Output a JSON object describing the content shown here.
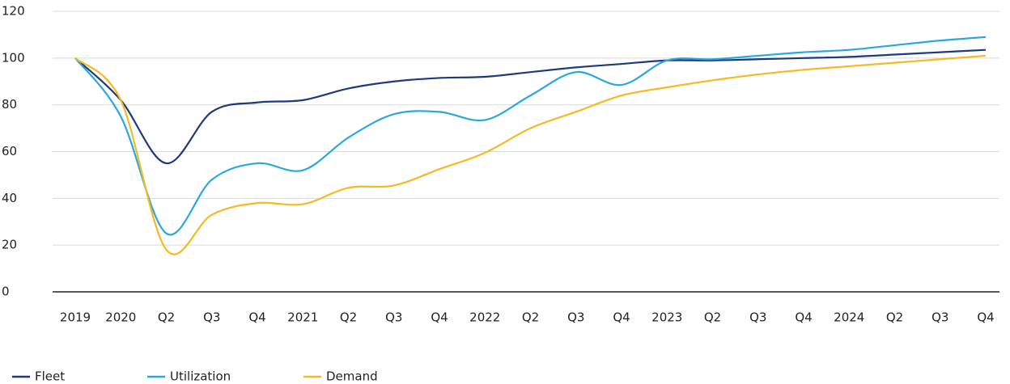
{
  "chart_data": {
    "type": "line",
    "categories": [
      "2019",
      "2020",
      "Q2",
      "Q3",
      "Q4",
      "2021",
      "Q2",
      "Q3",
      "Q4",
      "2022",
      "Q2",
      "Q3",
      "Q4",
      "2023",
      "Q2",
      "Q3",
      "Q4",
      "2024",
      "Q2",
      "Q3",
      "Q4"
    ],
    "series": [
      {
        "name": "Fleet",
        "color": "#1f3a7a",
        "values": [
          100,
          82,
          55,
          77,
          81,
          82,
          87,
          90,
          91.5,
          92,
          94,
          96,
          97.5,
          99,
          99,
          99.5,
          100,
          100.5,
          101.5,
          102.5,
          103.5
        ]
      },
      {
        "name": "Utilization",
        "color": "#29a8e0",
        "values": [
          100,
          75,
          25,
          48,
          55,
          52,
          66,
          76,
          77,
          73.5,
          84,
          94,
          88.5,
          99,
          99.5,
          101,
          102.5,
          103.5,
          105.5,
          107.5,
          109
        ]
      },
      {
        "name": "Demand",
        "color": "#f5b921",
        "values": [
          100,
          82,
          18,
          33,
          38,
          37.5,
          44.5,
          45.5,
          52.5,
          59.5,
          70,
          77,
          84,
          87.5,
          90.5,
          93,
          95,
          96.5,
          98,
          99.5,
          101
        ]
      }
    ],
    "ylim": [
      0,
      120
    ],
    "yticks": [
      0,
      20,
      40,
      60,
      80,
      100,
      120
    ],
    "grid": true,
    "legend": "bottom-left"
  }
}
